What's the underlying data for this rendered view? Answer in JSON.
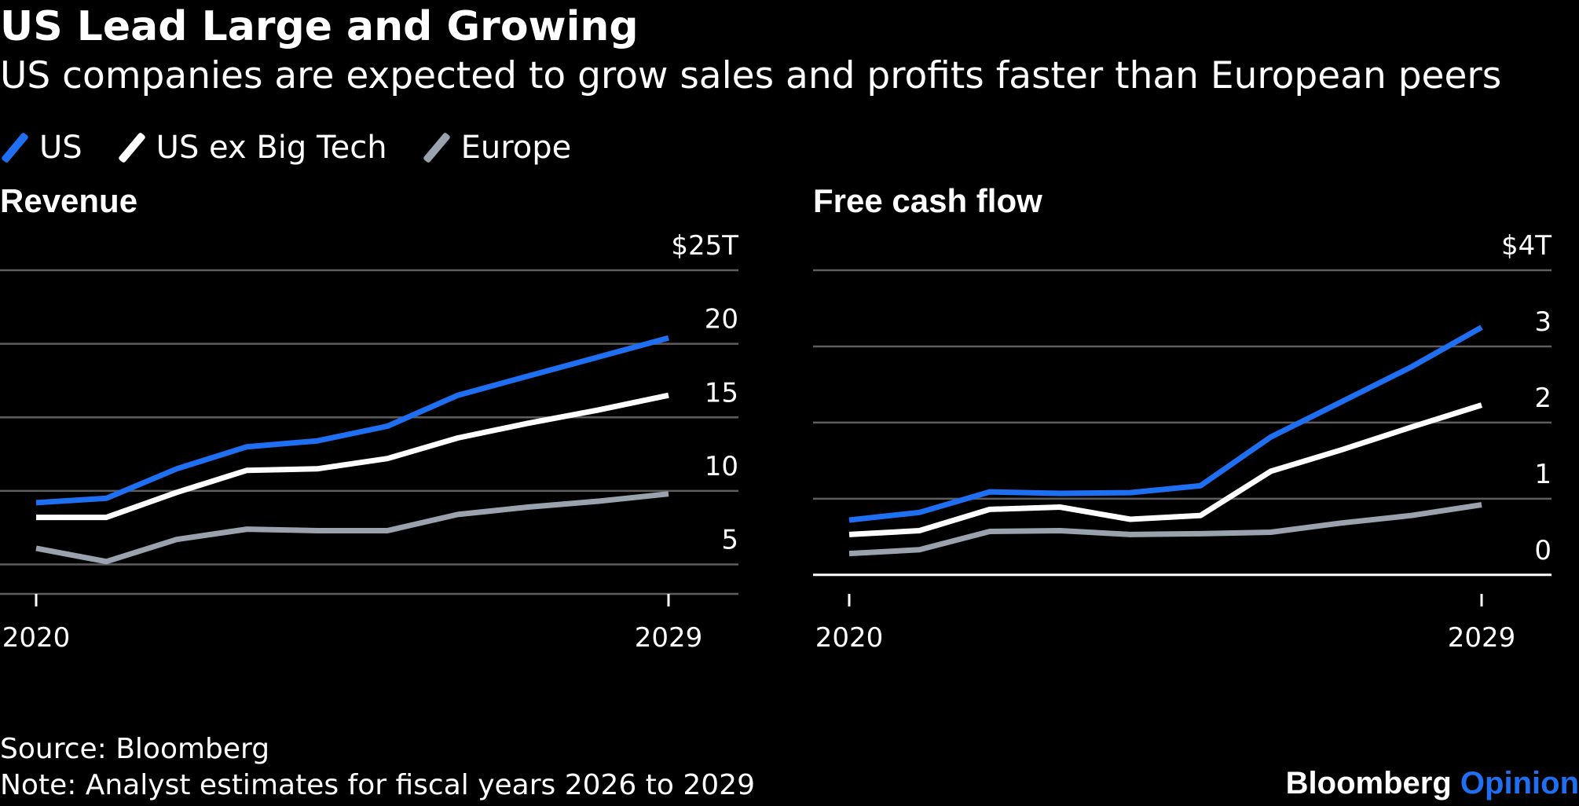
{
  "title": "US Lead Large and Growing",
  "subtitle": "US companies are expected to grow sales and profits faster than European peers",
  "legend": [
    {
      "name": "US",
      "color": "#1f6ff2"
    },
    {
      "name": "US ex Big Tech",
      "color": "#ffffff"
    },
    {
      "name": "Europe",
      "color": "#9aa3ad"
    }
  ],
  "source": "Source: Bloomberg",
  "note": "Note: Analyst estimates for fiscal years 2026 to 2029",
  "brand": {
    "name": "Bloomberg",
    "suffix": "Opinion"
  },
  "chart_data": [
    {
      "type": "line",
      "title": "Revenue",
      "x": [
        2020,
        2021,
        2022,
        2023,
        2024,
        2025,
        2026,
        2027,
        2028,
        2029
      ],
      "x_tick_labels": [
        "2020",
        "2029"
      ],
      "ylim": [
        3,
        25
      ],
      "y_tick_values": [
        5,
        10,
        15,
        20,
        25
      ],
      "y_tick_labels": [
        "5",
        "10",
        "15",
        "20",
        "$25T"
      ],
      "grid": true,
      "series": [
        {
          "name": "US",
          "color": "#1f6ff2",
          "values": [
            9.2,
            9.5,
            11.5,
            13.0,
            13.4,
            14.4,
            16.5,
            17.8,
            19.1,
            20.4
          ]
        },
        {
          "name": "US ex Big Tech",
          "color": "#ffffff",
          "values": [
            8.2,
            8.2,
            9.9,
            11.4,
            11.5,
            12.2,
            13.6,
            14.6,
            15.5,
            16.5
          ]
        },
        {
          "name": "Europe",
          "color": "#9aa3ad",
          "values": [
            6.1,
            5.2,
            6.7,
            7.4,
            7.3,
            7.3,
            8.4,
            8.9,
            9.3,
            9.8
          ]
        }
      ]
    },
    {
      "type": "line",
      "title": "Free cash flow",
      "x": [
        2020,
        2021,
        2022,
        2023,
        2024,
        2025,
        2026,
        2027,
        2028,
        2029
      ],
      "x_tick_labels": [
        "2020",
        "2029"
      ],
      "ylim": [
        -0.25,
        4
      ],
      "y_tick_values": [
        0,
        1,
        2,
        3,
        4
      ],
      "y_tick_labels": [
        "0",
        "1",
        "2",
        "3",
        "$4T"
      ],
      "grid": true,
      "series": [
        {
          "name": "US",
          "color": "#1f6ff2",
          "values": [
            0.72,
            0.82,
            1.09,
            1.07,
            1.08,
            1.17,
            1.81,
            2.27,
            2.73,
            3.25
          ]
        },
        {
          "name": "US ex Big Tech",
          "color": "#ffffff",
          "values": [
            0.53,
            0.58,
            0.86,
            0.89,
            0.73,
            0.78,
            1.36,
            1.64,
            1.94,
            2.23
          ]
        },
        {
          "name": "Europe",
          "color": "#9aa3ad",
          "values": [
            0.28,
            0.33,
            0.57,
            0.58,
            0.53,
            0.54,
            0.56,
            0.68,
            0.78,
            0.92
          ]
        }
      ]
    }
  ]
}
